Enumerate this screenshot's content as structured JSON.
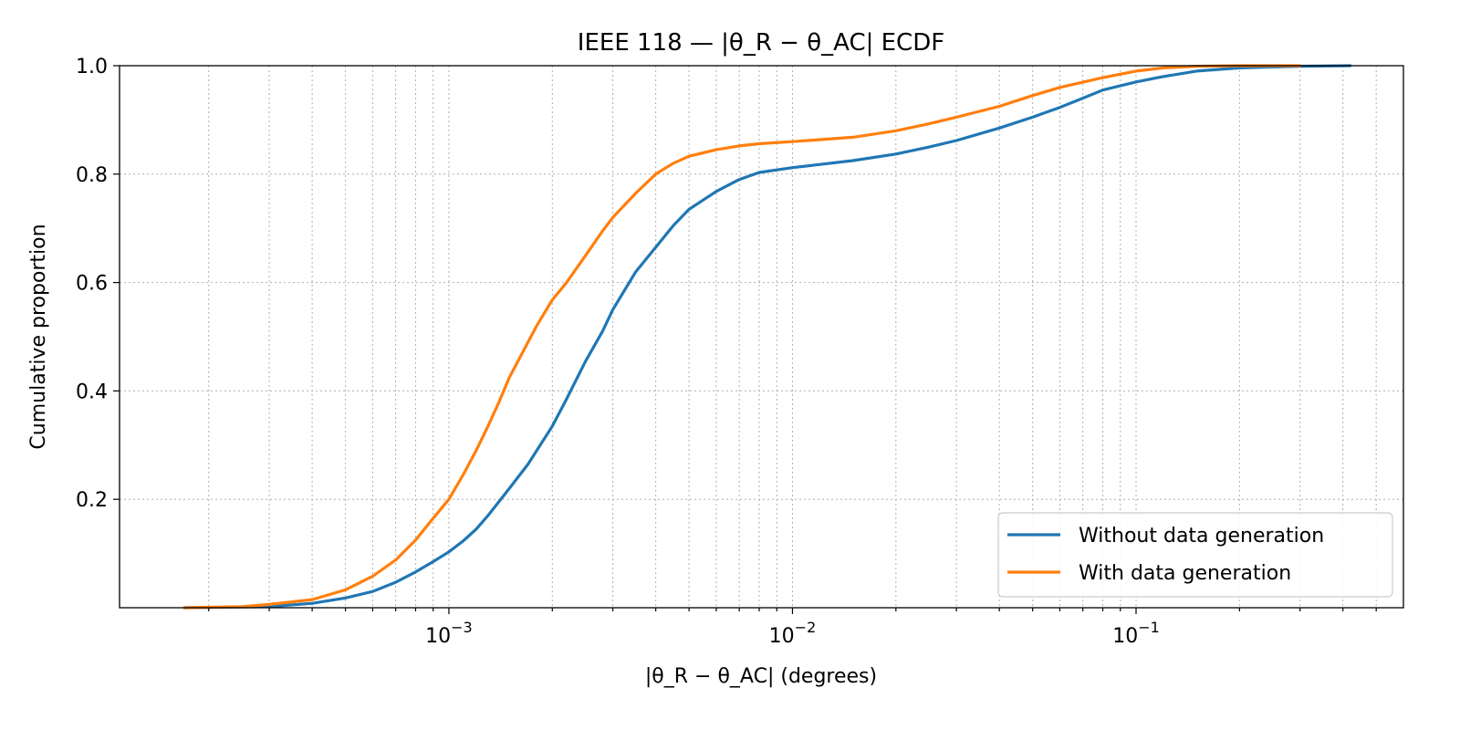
{
  "chart_data": {
    "type": "line",
    "title": "IEEE 118 — |θ_R − θ_AC| ECDF",
    "xlabel": "|θ_R − θ_AC| (degrees)",
    "ylabel": "Cumulative proportion",
    "xscale": "log",
    "xlim": [
      0.00011,
      0.6
    ],
    "ylim": [
      0,
      1.0
    ],
    "grid": true,
    "legend_position": "bottom-right",
    "x_ticks": [
      {
        "value": 0.001,
        "base": "10",
        "exp": "−3"
      },
      {
        "value": 0.01,
        "base": "10",
        "exp": "−2"
      },
      {
        "value": 0.1,
        "base": "10",
        "exp": "−1"
      }
    ],
    "y_ticks": [
      {
        "value": 0.2,
        "label": "0.2"
      },
      {
        "value": 0.4,
        "label": "0.4"
      },
      {
        "value": 0.6,
        "label": "0.6"
      },
      {
        "value": 0.8,
        "label": "0.8"
      },
      {
        "value": 1.0,
        "label": "1.0"
      }
    ],
    "series": [
      {
        "name": "Without data generation",
        "color": "#1f77b4",
        "points": [
          [
            0.00017,
            0.0
          ],
          [
            0.0003,
            0.002
          ],
          [
            0.0004,
            0.008
          ],
          [
            0.0005,
            0.018
          ],
          [
            0.0006,
            0.03
          ],
          [
            0.0007,
            0.047
          ],
          [
            0.0008,
            0.066
          ],
          [
            0.0009,
            0.085
          ],
          [
            0.001,
            0.103
          ],
          [
            0.0011,
            0.123
          ],
          [
            0.0012,
            0.145
          ],
          [
            0.0013,
            0.17
          ],
          [
            0.0015,
            0.22
          ],
          [
            0.0017,
            0.265
          ],
          [
            0.002,
            0.335
          ],
          [
            0.0022,
            0.385
          ],
          [
            0.0025,
            0.455
          ],
          [
            0.0028,
            0.51
          ],
          [
            0.003,
            0.55
          ],
          [
            0.0035,
            0.62
          ],
          [
            0.004,
            0.665
          ],
          [
            0.0045,
            0.705
          ],
          [
            0.005,
            0.735
          ],
          [
            0.006,
            0.768
          ],
          [
            0.007,
            0.79
          ],
          [
            0.008,
            0.803
          ],
          [
            0.01,
            0.812
          ],
          [
            0.015,
            0.825
          ],
          [
            0.02,
            0.837
          ],
          [
            0.025,
            0.85
          ],
          [
            0.03,
            0.862
          ],
          [
            0.04,
            0.885
          ],
          [
            0.05,
            0.905
          ],
          [
            0.06,
            0.923
          ],
          [
            0.07,
            0.94
          ],
          [
            0.08,
            0.955
          ],
          [
            0.1,
            0.97
          ],
          [
            0.12,
            0.98
          ],
          [
            0.15,
            0.99
          ],
          [
            0.2,
            0.996
          ],
          [
            0.3,
            0.999
          ],
          [
            0.42,
            1.0
          ]
        ]
      },
      {
        "name": "With data generation",
        "color": "#ff7f0e",
        "points": [
          [
            0.00017,
            0.0
          ],
          [
            0.00025,
            0.002
          ],
          [
            0.0003,
            0.006
          ],
          [
            0.0004,
            0.015
          ],
          [
            0.0005,
            0.033
          ],
          [
            0.0006,
            0.058
          ],
          [
            0.0007,
            0.088
          ],
          [
            0.0008,
            0.125
          ],
          [
            0.0009,
            0.165
          ],
          [
            0.001,
            0.2
          ],
          [
            0.0011,
            0.245
          ],
          [
            0.0012,
            0.29
          ],
          [
            0.0013,
            0.335
          ],
          [
            0.0014,
            0.38
          ],
          [
            0.0015,
            0.425
          ],
          [
            0.0017,
            0.49
          ],
          [
            0.0018,
            0.52
          ],
          [
            0.002,
            0.568
          ],
          [
            0.0022,
            0.6
          ],
          [
            0.0025,
            0.65
          ],
          [
            0.0028,
            0.695
          ],
          [
            0.003,
            0.72
          ],
          [
            0.0035,
            0.765
          ],
          [
            0.004,
            0.8
          ],
          [
            0.0045,
            0.82
          ],
          [
            0.005,
            0.833
          ],
          [
            0.006,
            0.845
          ],
          [
            0.007,
            0.852
          ],
          [
            0.008,
            0.856
          ],
          [
            0.01,
            0.86
          ],
          [
            0.015,
            0.868
          ],
          [
            0.02,
            0.88
          ],
          [
            0.025,
            0.893
          ],
          [
            0.03,
            0.905
          ],
          [
            0.04,
            0.925
          ],
          [
            0.05,
            0.945
          ],
          [
            0.06,
            0.96
          ],
          [
            0.08,
            0.978
          ],
          [
            0.1,
            0.99
          ],
          [
            0.12,
            0.996
          ],
          [
            0.15,
            0.999
          ],
          [
            0.2,
            1.0
          ],
          [
            0.3,
            1.0
          ]
        ]
      }
    ]
  }
}
